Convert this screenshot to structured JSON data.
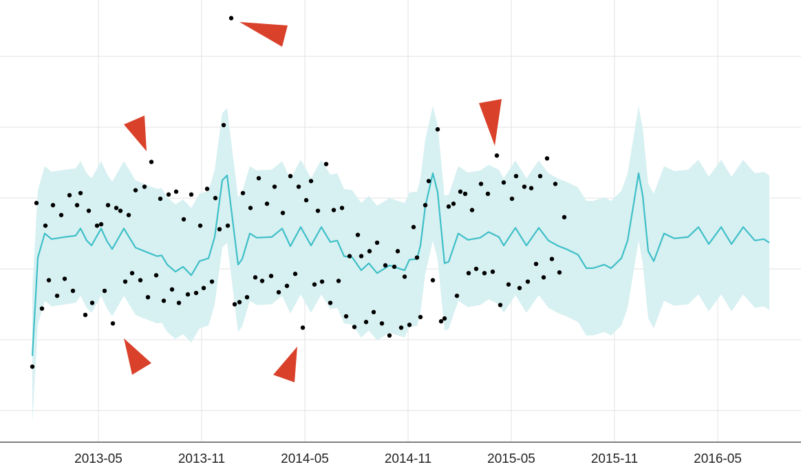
{
  "chart_data": {
    "type": "line",
    "title": "",
    "xlabel": "",
    "ylabel": "",
    "x_unit": "months since 2013-01",
    "xlim": [
      0,
      44.8
    ],
    "ylim": [
      -0.45,
      6.24
    ],
    "grid": true,
    "x_ticks": [
      {
        "label": "2013-05",
        "x": 4
      },
      {
        "label": "2013-11",
        "x": 10
      },
      {
        "label": "2014-05",
        "x": 16
      },
      {
        "label": "2014-11",
        "x": 22
      },
      {
        "label": "2015-05",
        "x": 28
      },
      {
        "label": "2015-11",
        "x": 34
      },
      {
        "label": "2016-05",
        "x": 40
      }
    ],
    "y_gridlines": [
      0,
      1,
      2,
      3,
      4,
      5
    ],
    "colors": {
      "forecast": "#3dbfc8",
      "interval": "#d7f0f1",
      "points": "#000000",
      "annotation": "#d9412b",
      "grid": "#e6e6e6",
      "axis": "#555555"
    },
    "interval_halfwidth": 0.95,
    "forecast": [
      [
        0.16,
        0.77
      ],
      [
        0.48,
        2.16
      ],
      [
        0.88,
        2.5
      ],
      [
        1.28,
        2.42
      ],
      [
        2.08,
        2.45
      ],
      [
        2.68,
        2.47
      ],
      [
        2.96,
        2.57
      ],
      [
        3.32,
        2.4
      ],
      [
        3.6,
        2.33
      ],
      [
        4.16,
        2.57
      ],
      [
        4.48,
        2.4
      ],
      [
        4.8,
        2.28
      ],
      [
        5.48,
        2.57
      ],
      [
        6.16,
        2.3
      ],
      [
        6.88,
        2.23
      ],
      [
        7.4,
        2.18
      ],
      [
        7.68,
        2.19
      ],
      [
        8.0,
        2.06
      ],
      [
        8.48,
        1.96
      ],
      [
        8.92,
        2.03
      ],
      [
        9.4,
        1.91
      ],
      [
        9.88,
        2.11
      ],
      [
        10.4,
        2.15
      ],
      [
        10.76,
        2.45
      ],
      [
        11.2,
        3.25
      ],
      [
        11.48,
        3.32
      ],
      [
        11.8,
        2.69
      ],
      [
        12.12,
        2.06
      ],
      [
        12.36,
        2.14
      ],
      [
        12.8,
        2.5
      ],
      [
        13.2,
        2.44
      ],
      [
        14.08,
        2.45
      ],
      [
        14.68,
        2.57
      ],
      [
        15.16,
        2.32
      ],
      [
        15.76,
        2.59
      ],
      [
        16.36,
        2.33
      ],
      [
        16.96,
        2.59
      ],
      [
        17.48,
        2.38
      ],
      [
        17.88,
        2.4
      ],
      [
        18.28,
        2.18
      ],
      [
        18.76,
        2.16
      ],
      [
        19.28,
        1.98
      ],
      [
        19.72,
        2.08
      ],
      [
        20.2,
        1.94
      ],
      [
        20.92,
        2.05
      ],
      [
        21.8,
        1.98
      ],
      [
        22.08,
        2.13
      ],
      [
        22.52,
        2.14
      ],
      [
        22.72,
        2.33
      ],
      [
        23.0,
        2.88
      ],
      [
        23.44,
        3.35
      ],
      [
        23.72,
        3.08
      ],
      [
        24.12,
        2.08
      ],
      [
        24.36,
        2.1
      ],
      [
        24.92,
        2.5
      ],
      [
        25.48,
        2.41
      ],
      [
        26.2,
        2.44
      ],
      [
        26.68,
        2.52
      ],
      [
        27.28,
        2.45
      ],
      [
        27.56,
        2.33
      ],
      [
        28.24,
        2.58
      ],
      [
        28.88,
        2.33
      ],
      [
        29.6,
        2.58
      ],
      [
        30.16,
        2.4
      ],
      [
        30.76,
        2.32
      ],
      [
        31.2,
        2.28
      ],
      [
        31.88,
        2.2
      ],
      [
        32.36,
        2.01
      ],
      [
        32.76,
        2.01
      ],
      [
        33.4,
        2.06
      ],
      [
        33.8,
        2.01
      ],
      [
        34.4,
        2.15
      ],
      [
        34.76,
        2.4
      ],
      [
        35.12,
        2.93
      ],
      [
        35.4,
        3.35
      ],
      [
        35.64,
        3.03
      ],
      [
        35.96,
        2.25
      ],
      [
        36.28,
        2.11
      ],
      [
        36.88,
        2.5
      ],
      [
        37.48,
        2.43
      ],
      [
        38.28,
        2.45
      ],
      [
        38.88,
        2.59
      ],
      [
        39.48,
        2.35
      ],
      [
        40.2,
        2.59
      ],
      [
        40.8,
        2.35
      ],
      [
        41.48,
        2.59
      ],
      [
        42.16,
        2.4
      ],
      [
        42.68,
        2.42
      ],
      [
        43.0,
        2.37
      ]
    ],
    "observations": [
      [
        0.16,
        0.62
      ],
      [
        0.4,
        2.93
      ],
      [
        0.72,
        1.44
      ],
      [
        0.92,
        2.61
      ],
      [
        1.12,
        1.84
      ],
      [
        1.36,
        2.9
      ],
      [
        1.6,
        1.62
      ],
      [
        1.84,
        2.76
      ],
      [
        2.04,
        1.86
      ],
      [
        2.32,
        3.04
      ],
      [
        2.52,
        1.69
      ],
      [
        2.76,
        2.9
      ],
      [
        2.96,
        3.07
      ],
      [
        3.24,
        1.35
      ],
      [
        3.44,
        2.82
      ],
      [
        3.64,
        1.52
      ],
      [
        3.92,
        2.61
      ],
      [
        4.16,
        2.63
      ],
      [
        4.36,
        1.69
      ],
      [
        4.56,
        2.9
      ],
      [
        4.84,
        1.23
      ],
      [
        5.04,
        2.86
      ],
      [
        5.28,
        2.82
      ],
      [
        5.56,
        1.82
      ],
      [
        5.76,
        2.76
      ],
      [
        5.96,
        1.94
      ],
      [
        6.16,
        3.11
      ],
      [
        6.44,
        1.84
      ],
      [
        6.68,
        3.16
      ],
      [
        6.88,
        1.6
      ],
      [
        7.08,
        3.51
      ],
      [
        7.36,
        1.91
      ],
      [
        7.6,
        2.99
      ],
      [
        7.8,
        1.55
      ],
      [
        8.08,
        3.05
      ],
      [
        8.28,
        1.71
      ],
      [
        8.52,
        3.09
      ],
      [
        8.68,
        1.52
      ],
      [
        8.96,
        2.7
      ],
      [
        9.2,
        1.64
      ],
      [
        9.4,
        3.05
      ],
      [
        9.68,
        1.66
      ],
      [
        9.92,
        2.61
      ],
      [
        10.12,
        1.73
      ],
      [
        10.32,
        3.13
      ],
      [
        10.6,
        1.82
      ],
      [
        10.8,
        3.0
      ],
      [
        11.04,
        2.56
      ],
      [
        11.28,
        4.03
      ],
      [
        11.52,
        2.61
      ],
      [
        11.72,
        5.54
      ],
      [
        11.92,
        1.5
      ],
      [
        12.2,
        1.53
      ],
      [
        12.4,
        3.07
      ],
      [
        12.64,
        1.6
      ],
      [
        12.84,
        2.86
      ],
      [
        13.12,
        1.88
      ],
      [
        13.32,
        3.28
      ],
      [
        13.52,
        1.83
      ],
      [
        13.8,
        2.92
      ],
      [
        14.04,
        1.9
      ],
      [
        14.24,
        3.16
      ],
      [
        14.48,
        1.67
      ],
      [
        14.72,
        2.79
      ],
      [
        14.96,
        1.76
      ],
      [
        15.16,
        3.31
      ],
      [
        15.44,
        1.93
      ],
      [
        15.64,
        3.16
      ],
      [
        15.88,
        1.17
      ],
      [
        16.08,
        2.97
      ],
      [
        16.36,
        3.24
      ],
      [
        16.56,
        1.78
      ],
      [
        16.76,
        2.82
      ],
      [
        17.0,
        1.82
      ],
      [
        17.24,
        3.48
      ],
      [
        17.48,
        1.52
      ],
      [
        17.68,
        2.83
      ],
      [
        17.96,
        1.83
      ],
      [
        18.16,
        2.86
      ],
      [
        18.4,
        1.33
      ],
      [
        18.6,
        2.18
      ],
      [
        18.88,
        1.18
      ],
      [
        19.08,
        2.48
      ],
      [
        19.28,
        2.18
      ],
      [
        19.56,
        1.25
      ],
      [
        19.76,
        2.25
      ],
      [
        20.0,
        1.39
      ],
      [
        20.2,
        2.37
      ],
      [
        20.48,
        1.23
      ],
      [
        20.68,
        2.05
      ],
      [
        20.92,
        1.06
      ],
      [
        21.2,
        2.03
      ],
      [
        21.4,
        2.25
      ],
      [
        21.6,
        1.17
      ],
      [
        21.8,
        1.89
      ],
      [
        22.08,
        1.21
      ],
      [
        22.32,
        2.59
      ],
      [
        22.52,
        2.16
      ],
      [
        22.72,
        1.32
      ],
      [
        23.0,
        2.9
      ],
      [
        23.2,
        3.24
      ],
      [
        23.44,
        1.84
      ],
      [
        23.72,
        3.97
      ],
      [
        23.92,
        1.26
      ],
      [
        24.12,
        1.3
      ],
      [
        24.36,
        2.88
      ],
      [
        24.64,
        2.92
      ],
      [
        24.84,
        1.62
      ],
      [
        25.04,
        3.09
      ],
      [
        25.32,
        3.06
      ],
      [
        25.52,
        1.94
      ],
      [
        25.72,
        2.83
      ],
      [
        25.96,
        2.0
      ],
      [
        26.24,
        3.2
      ],
      [
        26.44,
        1.94
      ],
      [
        26.64,
        3.06
      ],
      [
        26.92,
        1.96
      ],
      [
        27.16,
        3.6
      ],
      [
        27.36,
        1.49
      ],
      [
        27.56,
        3.22
      ],
      [
        27.84,
        1.78
      ],
      [
        28.04,
        2.99
      ],
      [
        28.28,
        3.31
      ],
      [
        28.48,
        1.73
      ],
      [
        28.76,
        3.16
      ],
      [
        28.96,
        1.82
      ],
      [
        29.16,
        3.14
      ],
      [
        29.44,
        2.07
      ],
      [
        29.68,
        3.31
      ],
      [
        29.88,
        1.88
      ],
      [
        30.08,
        3.56
      ],
      [
        30.36,
        2.14
      ],
      [
        30.56,
        3.2
      ],
      [
        30.8,
        1.95
      ],
      [
        31.08,
        2.73
      ]
    ],
    "annotations": [
      {
        "type": "arrow",
        "target": [
          11.72,
          5.54
        ]
      },
      {
        "type": "arrow",
        "target": [
          7.08,
          3.51
        ]
      },
      {
        "type": "arrow",
        "target": [
          27.16,
          3.6
        ]
      },
      {
        "type": "arrow",
        "target": [
          4.84,
          1.23
        ]
      },
      {
        "type": "arrow",
        "target": [
          15.88,
          1.17
        ]
      }
    ]
  }
}
